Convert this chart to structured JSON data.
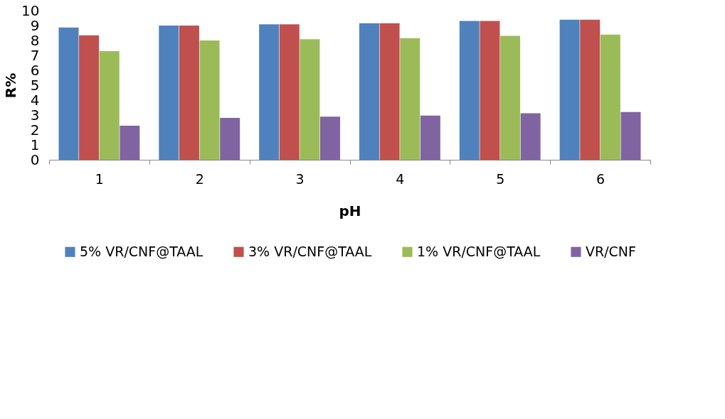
{
  "chart_data": {
    "type": "bar",
    "xlabel": "pH",
    "ylabel": "R%",
    "categories": [
      "1",
      "2",
      "3",
      "4",
      "5",
      "6"
    ],
    "series": [
      {
        "name": "5% VR/CNF@TAAL",
        "color": "#4f81bd",
        "values": [
          8.87,
          9.0,
          9.08,
          9.16,
          9.31,
          9.39
        ]
      },
      {
        "name": "3% VR/CNF@TAAL",
        "color": "#c0504d",
        "values": [
          8.34,
          9.0,
          9.08,
          9.16,
          9.31,
          9.39
        ]
      },
      {
        "name": "1% VR/CNF@TAAL",
        "color": "#9bbb59",
        "values": [
          7.29,
          8.0,
          8.08,
          8.16,
          8.31,
          8.39
        ]
      },
      {
        "name": "VR/CNF",
        "color": "#8064a2",
        "values": [
          2.28,
          2.81,
          2.89,
          2.97,
          3.12,
          3.2
        ]
      }
    ],
    "ylim": [
      0,
      10
    ],
    "yticks": [
      0,
      1,
      2,
      3,
      4,
      5,
      6,
      7,
      8,
      9,
      10
    ],
    "grid": false,
    "legend": "bottom"
  }
}
